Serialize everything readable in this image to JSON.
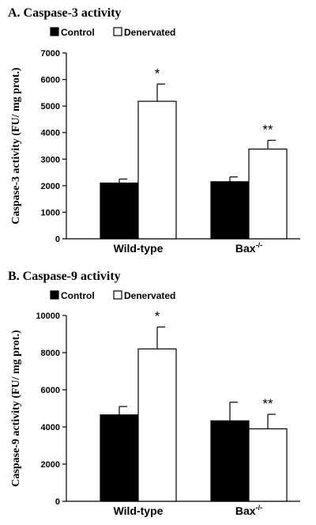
{
  "chart_data": [
    {
      "type": "bar",
      "title": "A. Caspase-3 activity",
      "ylabel": "Caspase-3 activity (FU/ mg prot.)",
      "xlabel": "",
      "ylim": [
        0,
        7000
      ],
      "yticks": [
        "0",
        "1000",
        "2000",
        "3000",
        "4000",
        "5000",
        "6000",
        "7000"
      ],
      "categories": [
        "Wild-type",
        "Bax"
      ],
      "category_superscripts": [
        "",
        "-/-"
      ],
      "legend_position": "top-left",
      "series": [
        {
          "name": "Control",
          "color": "#000000",
          "values": [
            2100,
            2150
          ],
          "errors": [
            150,
            180
          ]
        },
        {
          "name": "Denervated",
          "color": "#ffffff",
          "values": [
            5180,
            3380
          ],
          "errors": [
            650,
            330
          ]
        }
      ],
      "annotations": [
        {
          "text": "*",
          "category": 0,
          "series": 1
        },
        {
          "text": "**",
          "category": 1,
          "series": 1
        }
      ]
    },
    {
      "type": "bar",
      "title": "B. Caspase-9 activity",
      "ylabel": "Caspase-9 activity (FU/ mg prot.)",
      "xlabel": "",
      "ylim": [
        0,
        10000
      ],
      "yticks": [
        "0",
        "2000",
        "4000",
        "6000",
        "8000",
        "10000"
      ],
      "categories": [
        "Wild-type",
        "Bax"
      ],
      "category_superscripts": [
        "",
        "-/-"
      ],
      "legend_position": "top-left",
      "series": [
        {
          "name": "Control",
          "color": "#000000",
          "values": [
            4650,
            4330
          ],
          "errors": [
            450,
            1000
          ]
        },
        {
          "name": "Denervated",
          "color": "#ffffff",
          "values": [
            8200,
            3900
          ],
          "errors": [
            1180,
            780
          ]
        }
      ],
      "annotations": [
        {
          "text": "*",
          "category": 0,
          "series": 1
        },
        {
          "text": "**",
          "category": 1,
          "series": 1
        }
      ]
    }
  ]
}
